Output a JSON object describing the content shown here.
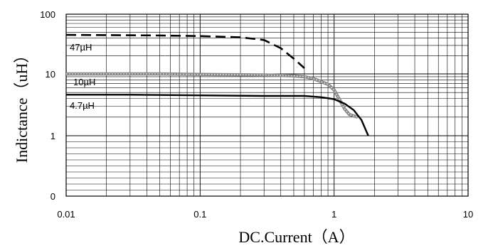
{
  "chart_data": {
    "type": "line",
    "x_scale": "log",
    "xlim": [
      0.01,
      10
    ],
    "y_tick_labels": [
      "100",
      "10",
      "1",
      "0"
    ],
    "x_tick_labels": [
      "0.01",
      "0.1",
      "1",
      "10"
    ],
    "xlabel": "DC.Current（A）",
    "ylabel": "Indictance（uH）",
    "grid": true,
    "series": [
      {
        "name": "47µH",
        "style": "dashed",
        "color": "#000000",
        "x": [
          0.01,
          0.05,
          0.1,
          0.2,
          0.3,
          0.4,
          0.5,
          0.6
        ],
        "y": [
          45,
          44,
          43,
          41,
          37,
          27,
          18,
          12.5
        ]
      },
      {
        "name": "10µH",
        "style": "dotted-thick",
        "color": "#888888",
        "x": [
          0.01,
          0.05,
          0.1,
          0.3,
          0.5,
          0.6,
          0.7,
          0.8,
          0.9,
          1.0,
          1.1,
          1.2,
          1.3,
          1.5
        ],
        "y": [
          10,
          10,
          9.8,
          9.6,
          9.3,
          9.0,
          8.4,
          7.5,
          6.8,
          5.5,
          3.8,
          2.7,
          2.2,
          2.0
        ]
      },
      {
        "name": "4.7µH",
        "style": "solid",
        "color": "#000000",
        "x": [
          0.01,
          0.03,
          0.1,
          0.3,
          0.6,
          0.8,
          1.0,
          1.2,
          1.4,
          1.6,
          1.8
        ],
        "y": [
          4.6,
          4.6,
          4.5,
          4.4,
          4.4,
          4.2,
          3.9,
          3.3,
          2.6,
          1.8,
          1.0
        ]
      }
    ]
  }
}
